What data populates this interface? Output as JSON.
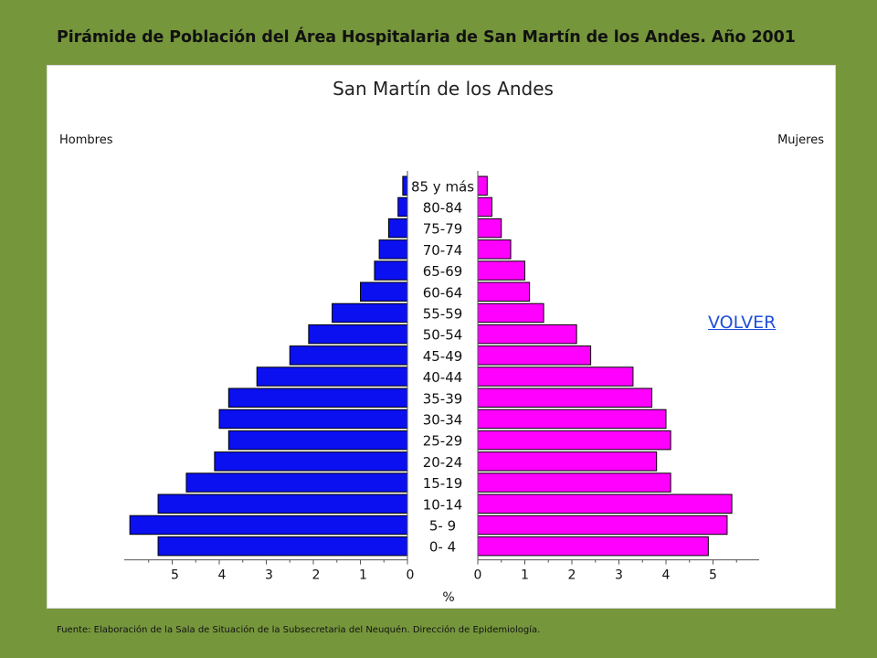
{
  "page": {
    "title": "Pirámide de Población del Área Hospitalaria de San Martín de los Andes. Año 2001",
    "source": "Fuente: Elaboración de la Sala de Situación de la Subsecretaria del Neuquén. Dirección de Epidemiología.",
    "link_label": "VOLVER"
  },
  "chart_data": {
    "type": "bar",
    "orientation": "horizontal-population-pyramid",
    "title": "San Martín de los Andes",
    "xlabel": "%",
    "left_label": "Hombres",
    "right_label": "Mujeres",
    "categories": [
      "85 y más",
      "80-84",
      "75-79",
      "70-74",
      "65-69",
      "60-64",
      "55-59",
      "50-54",
      "45-49",
      "40-44",
      "35-39",
      "30-34",
      "25-29",
      "20-24",
      "15-19",
      "10-14",
      "5- 9",
      "0- 4"
    ],
    "series": [
      {
        "name": "Hombres",
        "color": "#0a10f0",
        "values": [
          0.1,
          0.2,
          0.4,
          0.6,
          0.7,
          1.0,
          1.6,
          2.1,
          2.5,
          3.2,
          3.8,
          4.0,
          3.8,
          4.1,
          4.7,
          5.3,
          5.9,
          5.3
        ]
      },
      {
        "name": "Mujeres",
        "color": "#ff00ff",
        "values": [
          0.2,
          0.3,
          0.5,
          0.7,
          1.0,
          1.1,
          1.4,
          2.1,
          2.4,
          3.3,
          3.7,
          4.0,
          4.1,
          3.8,
          4.1,
          5.4,
          5.3,
          4.9
        ]
      }
    ],
    "male_ticks": [
      "5",
      "4",
      "3",
      "2",
      "1",
      "0"
    ],
    "female_ticks": [
      "0",
      "1",
      "2",
      "3",
      "4",
      "5"
    ],
    "xlim": [
      0,
      6
    ],
    "grid": false,
    "legend": "corner labels"
  }
}
